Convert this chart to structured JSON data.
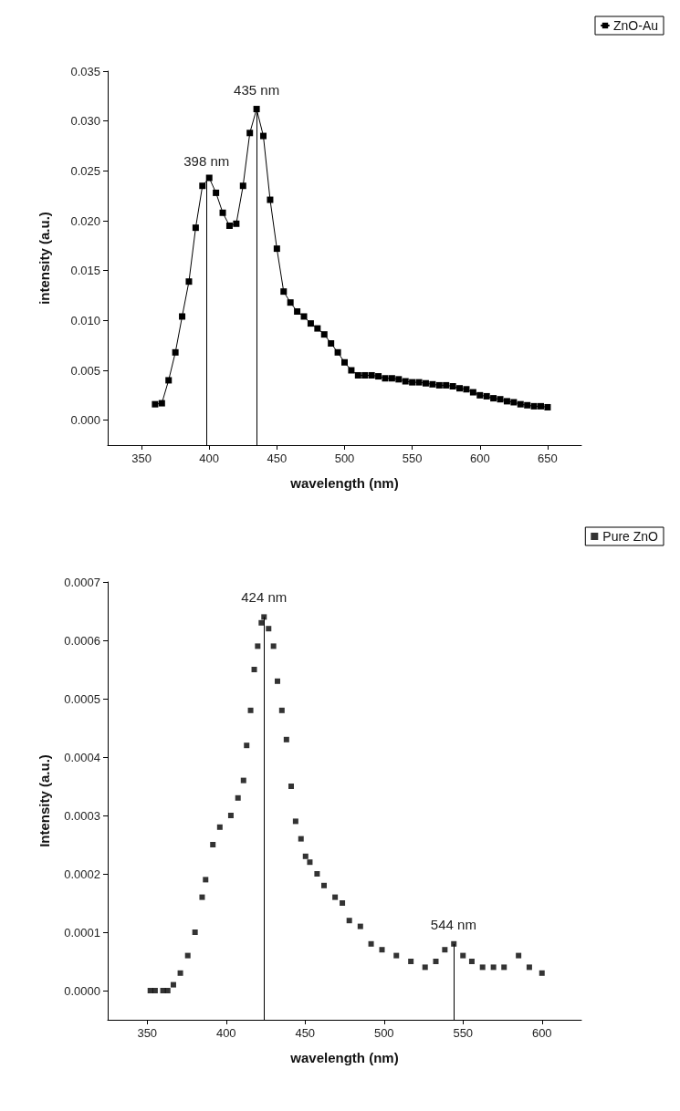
{
  "chart_data": [
    {
      "type": "line",
      "xlabel": "wavelength (nm)",
      "ylabel": "intensity (a.u.)",
      "marker": "square",
      "line_style": "solid",
      "legend": "top right",
      "grid": false,
      "xlim": [
        325,
        675
      ],
      "xticks": [
        350,
        400,
        450,
        500,
        550,
        600,
        650
      ],
      "ylim": [
        -0.0025,
        0.035
      ],
      "yticks": [
        {
          "value": 0,
          "label": "0.000"
        },
        {
          "value": 0.005,
          "label": "0.005"
        },
        {
          "value": 0.01,
          "label": "0.010"
        },
        {
          "value": 0.015,
          "label": "0.015"
        },
        {
          "value": 0.02,
          "label": "0.020"
        },
        {
          "value": 0.025,
          "label": "0.025"
        },
        {
          "value": 0.03,
          "label": "0.030"
        },
        {
          "value": 0.035,
          "label": "0.035"
        }
      ],
      "series": [
        {
          "name": "ZnO-Au",
          "color": "#000000",
          "x": [
            360,
            365,
            370,
            375,
            380,
            385,
            390,
            395,
            400,
            405,
            410,
            415,
            420,
            425,
            430,
            435,
            440,
            445,
            450,
            455,
            460,
            465,
            470,
            475,
            480,
            485,
            490,
            495,
            500,
            505,
            510,
            515,
            520,
            525,
            530,
            535,
            540,
            545,
            550,
            555,
            560,
            565,
            570,
            575,
            580,
            585,
            590,
            595,
            600,
            605,
            610,
            615,
            620,
            625,
            630,
            635,
            640,
            645,
            650
          ],
          "values": [
            0.0016,
            0.0017,
            0.004,
            0.0068,
            0.0104,
            0.0139,
            0.0193,
            0.0235,
            0.0243,
            0.0228,
            0.0208,
            0.0195,
            0.0197,
            0.0235,
            0.0288,
            0.0312,
            0.0285,
            0.0221,
            0.0172,
            0.0129,
            0.0118,
            0.0109,
            0.0104,
            0.0097,
            0.0092,
            0.0086,
            0.0077,
            0.0068,
            0.0058,
            0.005,
            0.0045,
            0.0045,
            0.0045,
            0.0044,
            0.0042,
            0.0042,
            0.0041,
            0.0039,
            0.0038,
            0.0038,
            0.0037,
            0.0036,
            0.0035,
            0.0035,
            0.0034,
            0.0032,
            0.0031,
            0.0028,
            0.0025,
            0.0024,
            0.0022,
            0.0021,
            0.0019,
            0.0018,
            0.0016,
            0.0015,
            0.0014,
            0.0014,
            0.0013
          ]
        }
      ],
      "ref_lines": [
        {
          "axis": "x",
          "value": 398,
          "label": "398 nm"
        },
        {
          "axis": "x",
          "value": 435,
          "label": "435 nm"
        }
      ]
    },
    {
      "type": "scatter",
      "xlabel": "wavelength (nm)",
      "ylabel": "Intensity (a.u.)",
      "marker": "square",
      "legend": "top right",
      "grid": false,
      "xlim": [
        325,
        625
      ],
      "xticks": [
        350,
        400,
        450,
        500,
        550,
        600
      ],
      "ylim": [
        -5e-05,
        0.0007
      ],
      "yticks": [
        {
          "value": 0,
          "label": "0.0000"
        },
        {
          "value": 0.0001,
          "label": "0.0001"
        },
        {
          "value": 0.0002,
          "label": "0.0002"
        },
        {
          "value": 0.0003,
          "label": "0.0003"
        },
        {
          "value": 0.0004,
          "label": "0.0004"
        },
        {
          "value": 0.0005,
          "label": "0.0005"
        },
        {
          "value": 0.0006,
          "label": "0.0006"
        },
        {
          "value": 0.0007,
          "label": "0.0007"
        }
      ],
      "series": [
        {
          "name": "Pure ZnO",
          "color": "#000000",
          "x": [
            352,
            355,
            360,
            363,
            366.6,
            371,
            375.7,
            380.3,
            384.8,
            387,
            391.6,
            396,
            403,
            407.5,
            411,
            413,
            415.5,
            417.8,
            420,
            422.3,
            424,
            426.9,
            430,
            432.5,
            435.3,
            438.2,
            441.2,
            444,
            447.4,
            450.3,
            453,
            457.6,
            462,
            469,
            473.6,
            478,
            485,
            491.8,
            498.7,
            507.8,
            517,
            526,
            532.8,
            538.5,
            544.2,
            550,
            555.6,
            562.4,
            569.3,
            576,
            585.2,
            592,
            600
          ],
          "values": [
            0,
            0,
            0,
            0,
            1e-05,
            3e-05,
            6e-05,
            0.0001,
            0.00016,
            0.00019,
            0.00025,
            0.00028,
            0.0003,
            0.00033,
            0.00036,
            0.00042,
            0.00048,
            0.00055,
            0.00059,
            0.00063,
            0.00064,
            0.00062,
            0.00059,
            0.00053,
            0.00048,
            0.00043,
            0.00035,
            0.00029,
            0.00026,
            0.00023,
            0.00022,
            0.0002,
            0.00018,
            0.00016,
            0.00015,
            0.00012,
            0.00011,
            8e-05,
            7e-05,
            6e-05,
            5e-05,
            4e-05,
            5e-05,
            7e-05,
            8e-05,
            6e-05,
            5e-05,
            4e-05,
            4e-05,
            4e-05,
            6e-05,
            4e-05,
            3e-05
          ]
        }
      ],
      "ref_lines": [
        {
          "axis": "x",
          "value": 424,
          "label": "424 nm"
        },
        {
          "axis": "x",
          "value": 544,
          "label": "544 nm"
        }
      ]
    }
  ]
}
